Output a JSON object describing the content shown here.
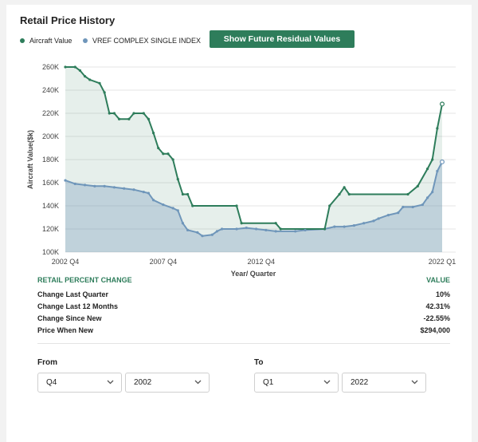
{
  "title": "Retail Price History",
  "legend": {
    "aircraft_label": "Aircraft Value",
    "vref_label": "VREF COMPLEX SINGLE INDEX"
  },
  "future_button_label": "Show Future Residual Values",
  "colors": {
    "aircraft": "#2e7d5b",
    "vref": "#6f96ba",
    "button": "#2e7d5b"
  },
  "chart_data": {
    "type": "area",
    "xlabel": "Year/ Quarter",
    "ylabel": "Aircraft Value($k)",
    "ylim": [
      100,
      260
    ],
    "y_ticks": [
      "100K",
      "120K",
      "140K",
      "160K",
      "180K",
      "200K",
      "220K",
      "240K",
      "260K"
    ],
    "x_ticks": [
      {
        "label": "2002 Q4",
        "x": 2002.75
      },
      {
        "label": "2007 Q4",
        "x": 2007.75
      },
      {
        "label": "2012 Q4",
        "x": 2012.75
      },
      {
        "label": "2022 Q1",
        "x": 2022.0
      }
    ],
    "grid": true,
    "series": [
      {
        "name": "Aircraft Value",
        "points": [
          [
            2002.75,
            260
          ],
          [
            2003.25,
            260
          ],
          [
            2003.5,
            257
          ],
          [
            2003.75,
            252
          ],
          [
            2004.0,
            249
          ],
          [
            2004.5,
            246
          ],
          [
            2004.75,
            238
          ],
          [
            2005.0,
            220
          ],
          [
            2005.25,
            220
          ],
          [
            2005.5,
            215
          ],
          [
            2006.0,
            215
          ],
          [
            2006.25,
            220
          ],
          [
            2006.75,
            220
          ],
          [
            2007.0,
            215
          ],
          [
            2007.25,
            203
          ],
          [
            2007.5,
            190
          ],
          [
            2007.75,
            185
          ],
          [
            2008.0,
            185
          ],
          [
            2008.25,
            180
          ],
          [
            2008.5,
            163
          ],
          [
            2008.75,
            150
          ],
          [
            2009.0,
            150
          ],
          [
            2009.25,
            140
          ],
          [
            2011.5,
            140
          ],
          [
            2011.75,
            125
          ],
          [
            2013.5,
            125
          ],
          [
            2013.75,
            120
          ],
          [
            2016.0,
            120
          ],
          [
            2016.25,
            140
          ],
          [
            2016.75,
            150
          ],
          [
            2017.0,
            156
          ],
          [
            2017.25,
            150
          ],
          [
            2020.25,
            150
          ],
          [
            2020.75,
            157
          ],
          [
            2021.25,
            172
          ],
          [
            2021.5,
            180
          ],
          [
            2021.75,
            207
          ],
          [
            2022.0,
            228
          ]
        ]
      },
      {
        "name": "VREF COMPLEX SINGLE INDEX",
        "points": [
          [
            2002.75,
            162
          ],
          [
            2003.25,
            159
          ],
          [
            2003.75,
            158
          ],
          [
            2004.25,
            157
          ],
          [
            2004.75,
            157
          ],
          [
            2005.25,
            156
          ],
          [
            2005.75,
            155
          ],
          [
            2006.25,
            154
          ],
          [
            2006.75,
            152
          ],
          [
            2007.0,
            151
          ],
          [
            2007.25,
            145
          ],
          [
            2007.75,
            141
          ],
          [
            2008.25,
            138
          ],
          [
            2008.5,
            136
          ],
          [
            2008.75,
            125
          ],
          [
            2009.0,
            119
          ],
          [
            2009.5,
            117
          ],
          [
            2009.75,
            114
          ],
          [
            2010.25,
            115
          ],
          [
            2010.5,
            118
          ],
          [
            2010.75,
            120
          ],
          [
            2011.5,
            120
          ],
          [
            2012.0,
            121
          ],
          [
            2012.5,
            120
          ],
          [
            2013.0,
            119
          ],
          [
            2013.5,
            118
          ],
          [
            2014.5,
            118
          ],
          [
            2015.0,
            119
          ],
          [
            2016.0,
            120
          ],
          [
            2016.5,
            122
          ],
          [
            2017.0,
            122
          ],
          [
            2017.5,
            123
          ],
          [
            2018.0,
            125
          ],
          [
            2018.5,
            127
          ],
          [
            2018.75,
            129
          ],
          [
            2019.25,
            132
          ],
          [
            2019.75,
            134
          ],
          [
            2020.0,
            139
          ],
          [
            2020.5,
            139
          ],
          [
            2021.0,
            141
          ],
          [
            2021.25,
            147
          ],
          [
            2021.5,
            152
          ],
          [
            2021.75,
            170
          ],
          [
            2022.0,
            178
          ]
        ]
      }
    ]
  },
  "stats": {
    "header_label": "RETAIL PERCENT CHANGE",
    "header_value": "VALUE",
    "rows": [
      {
        "label": "Change Last Quarter",
        "value": "10%"
      },
      {
        "label": "Change Last 12 Months",
        "value": "42.31%"
      },
      {
        "label": "Change Since New",
        "value": "-22.55%"
      },
      {
        "label": "Price When New",
        "value": "$294,000"
      }
    ]
  },
  "range": {
    "from_label": "From",
    "to_label": "To",
    "from_quarter": "Q4",
    "from_year": "2002",
    "to_quarter": "Q1",
    "to_year": "2022"
  }
}
